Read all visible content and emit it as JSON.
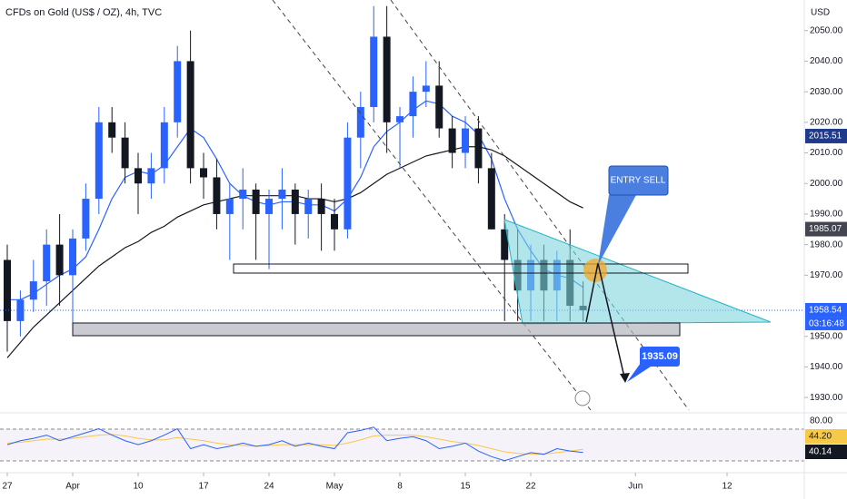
{
  "chart_data": {
    "type": "candlestick",
    "title": "CFDs on Gold (US$ / OZ), 4h, TVC",
    "currency": "USD",
    "up_color": "#2962ff",
    "down_color": "#131722",
    "x": [
      0,
      1,
      2,
      3,
      4,
      5,
      6,
      7,
      8,
      9,
      10,
      11,
      12,
      13,
      14,
      15,
      16,
      17,
      18,
      19,
      20,
      21,
      22,
      23,
      24,
      25,
      26,
      27,
      28,
      29,
      30,
      31,
      32,
      33,
      34,
      35,
      36,
      37,
      38,
      39,
      40,
      41,
      42,
      43,
      44
    ],
    "open": [
      1975,
      1955,
      1962,
      1968,
      1980,
      1970,
      1982,
      1995,
      2020,
      2015,
      2005,
      2000,
      2005,
      2020,
      2040,
      2005,
      2002,
      1990,
      1995,
      1998,
      1990,
      1995,
      1998,
      1990,
      1995,
      1990,
      1985,
      2015,
      2025,
      2048,
      2020,
      2022,
      2030,
      2032,
      2018,
      2010,
      2018,
      2005,
      1985,
      1975,
      1965,
      1975,
      1965,
      1975,
      1960
    ],
    "high": [
      1980,
      1965,
      1975,
      1985,
      1990,
      1985,
      2000,
      2025,
      2025,
      2020,
      2010,
      2010,
      2025,
      2045,
      2050,
      2010,
      2008,
      2000,
      2005,
      2000,
      1998,
      2005,
      2000,
      1998,
      2000,
      1995,
      2020,
      2030,
      2058,
      2058,
      2025,
      2035,
      2040,
      2040,
      2022,
      2022,
      2022,
      2010,
      1990,
      1985,
      1980,
      1980,
      1978,
      1985,
      1968
    ],
    "low": [
      1945,
      1950,
      1958,
      1960,
      1960,
      1950,
      1978,
      1990,
      2010,
      2000,
      1990,
      1995,
      2000,
      2015,
      2000,
      1995,
      1985,
      1975,
      1985,
      1975,
      1972,
      1985,
      1980,
      1982,
      1978,
      1978,
      1982,
      2005,
      2020,
      2010,
      2005,
      2015,
      2025,
      2015,
      2005,
      2005,
      2000,
      1985,
      1955,
      1955,
      1955,
      1955,
      1955,
      1955,
      1955
    ],
    "close": [
      1955,
      1962,
      1968,
      1980,
      1970,
      1982,
      1995,
      2020,
      2015,
      2005,
      2000,
      2005,
      2020,
      2040,
      2005,
      2002,
      1990,
      1995,
      1998,
      1990,
      1995,
      1998,
      1990,
      1995,
      1990,
      1985,
      2015,
      2025,
      2048,
      2020,
      2022,
      2030,
      2032,
      2018,
      2010,
      2018,
      2005,
      1985,
      1975,
      1965,
      1975,
      1965,
      1975,
      1960,
      1958.54
    ],
    "overlays": [
      {
        "color": "#2962ff",
        "values": [
          1962,
          1962,
          1964,
          1967,
          1970,
          1972,
          1976,
          1985,
          1995,
          2002,
          2004,
          2003,
          2006,
          2012,
          2018,
          2015,
          2008,
          2000,
          1996,
          1994,
          1993,
          1994,
          1994,
          1993,
          1993,
          1991,
          1995,
          2002,
          2012,
          2017,
          2020,
          2024,
          2027,
          2026,
          2022,
          2020,
          2016,
          2008,
          1995,
          1985,
          1978,
          1972,
          1970,
          1969,
          1966
        ]
      },
      {
        "color": "#131722",
        "values": [
          1943,
          1948,
          1953,
          1957,
          1961,
          1965,
          1969,
          1973,
          1976,
          1979,
          1981,
          1984,
          1986,
          1989,
          1991,
          1993,
          1994,
          1995,
          1996,
          1996,
          1996,
          1996,
          1996,
          1995,
          1995,
          1994,
          1995,
          1997,
          2000,
          2003,
          2005,
          2007,
          2009,
          2010,
          2011,
          2012,
          2012,
          2011,
          2009,
          2006,
          2003,
          2000,
          1997,
          1994,
          1992
        ]
      }
    ],
    "xlim": [
      -0.556,
      60.9
    ],
    "xticks": [
      {
        "value": 0,
        "label": "27"
      },
      {
        "value": 5,
        "label": "Apr"
      },
      {
        "value": 10,
        "label": "10"
      },
      {
        "value": 15,
        "label": "17"
      },
      {
        "value": 20,
        "label": "24"
      },
      {
        "value": 25,
        "label": "May"
      },
      {
        "value": 30,
        "label": "8"
      },
      {
        "value": 35,
        "label": "15"
      },
      {
        "value": 40,
        "label": "22"
      },
      {
        "value": 48,
        "label": "Jun"
      },
      {
        "value": 55,
        "label": "12"
      }
    ],
    "ylim": [
      1925,
      2060
    ],
    "yticks": [
      {
        "value": 1930,
        "label": "1930.00"
      },
      {
        "value": 1940,
        "label": "1940.00"
      },
      {
        "value": 1950,
        "label": "1950.00"
      },
      {
        "value": 1970,
        "label": "1970.00"
      },
      {
        "value": 1980,
        "label": "1980.00"
      },
      {
        "value": 1990,
        "label": "1990.00"
      },
      {
        "value": 2000,
        "label": "2000.00"
      },
      {
        "value": 2010,
        "label": "2010.00"
      },
      {
        "value": 2020,
        "label": "2020.00"
      },
      {
        "value": 2030,
        "label": "2030.00"
      },
      {
        "value": 2040,
        "label": "2040.00"
      },
      {
        "value": 2050,
        "label": "2050.00"
      }
    ],
    "price_labels": [
      {
        "value": 2015.51,
        "color": "#1e3a8a"
      },
      {
        "value": 1985.07,
        "color": "#434651"
      },
      {
        "value": 1958.54,
        "color": "#2962ff"
      }
    ],
    "countdown": "03:16:48",
    "annotations": [
      "ENTRY SELL"
    ],
    "target": 1935.09,
    "rsi": {
      "color": "#2962ff",
      "ma_color": "#f7c948",
      "values": [
        50,
        55,
        58,
        62,
        55,
        60,
        65,
        70,
        62,
        55,
        50,
        55,
        62,
        70,
        45,
        50,
        45,
        48,
        52,
        48,
        50,
        55,
        48,
        52,
        48,
        45,
        65,
        68,
        72,
        55,
        58,
        60,
        55,
        45,
        48,
        52,
        42,
        35,
        30,
        35,
        40,
        38,
        45,
        42,
        40.14
      ],
      "ma": [
        52,
        53,
        55,
        57,
        57,
        58,
        60,
        62,
        63,
        61,
        58,
        56,
        56,
        59,
        57,
        55,
        52,
        50,
        49,
        48,
        49,
        50,
        50,
        50,
        50,
        49,
        52,
        56,
        61,
        62,
        62,
        62,
        60,
        57,
        54,
        52,
        49,
        45,
        41,
        39,
        38,
        38,
        40,
        42,
        44.2
      ],
      "ylim": [
        16,
        90
      ],
      "yticks": [
        {
          "value": 80,
          "label": "80.00"
        }
      ],
      "labels": [
        {
          "value": 44.2,
          "label": "44.20",
          "color": "#f7c948"
        },
        {
          "value": 40.14,
          "color": "#131722"
        }
      ]
    }
  }
}
